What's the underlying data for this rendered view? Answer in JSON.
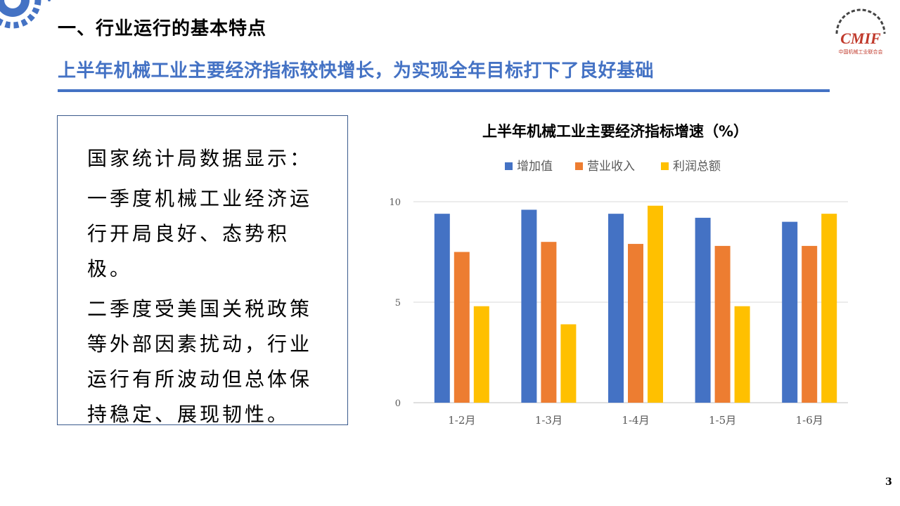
{
  "header": {
    "section_title": "一、行业运行的基本特点",
    "subtitle": "上半年机械工业主要经济指标较快增长，为实现全年目标打下了良好基础"
  },
  "logo": {
    "text": "CMIF",
    "caption": "中国机械工业联合会",
    "color": "#c0392b"
  },
  "textbox": {
    "paragraphs": [
      "国家统计局数据显示：",
      "一季度机械工业经济运行开局良好、态势积极。",
      "二季度受美国关税政策等外部因素扰动，行业运行有所波动但总体保持稳定、展现韧性。"
    ]
  },
  "chart_data": {
    "type": "bar",
    "title": "上半年机械工业主要经济指标增速（%）",
    "categories": [
      "1-2月",
      "1-3月",
      "1-4月",
      "1-5月",
      "1-6月"
    ],
    "series": [
      {
        "name": "增加值",
        "color": "#4472c4",
        "values": [
          9.4,
          9.6,
          9.4,
          9.2,
          9.0
        ]
      },
      {
        "name": "营业收入",
        "color": "#ed7d31",
        "values": [
          7.5,
          8.0,
          7.9,
          7.8,
          7.8
        ]
      },
      {
        "name": "利润总额",
        "color": "#ffc000",
        "values": [
          4.8,
          3.9,
          9.8,
          4.8,
          9.4
        ]
      }
    ],
    "yticks": [
      0,
      5,
      10
    ],
    "ylim": [
      0,
      10
    ],
    "legend": "top",
    "grid": true
  },
  "footer": {
    "page_number": "3"
  },
  "colors": {
    "accent": "#4472c4",
    "frame": "#3a5a8c"
  }
}
